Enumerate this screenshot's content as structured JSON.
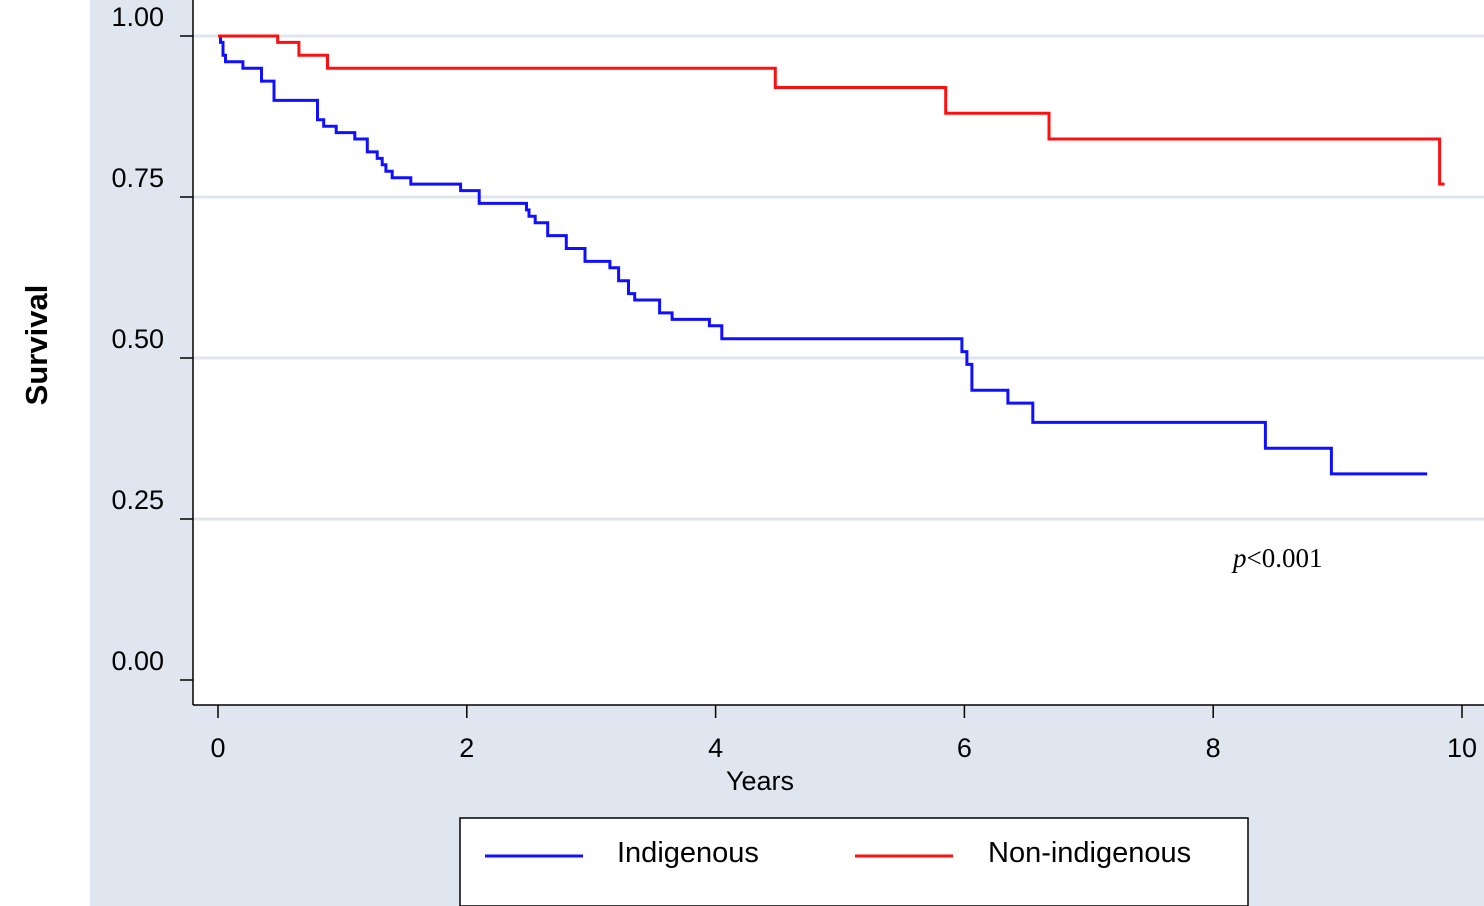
{
  "chart_data": {
    "type": "line",
    "xlabel": "Years",
    "ylabel": "Survival",
    "xlim": [
      0,
      10
    ],
    "ylim": [
      0,
      1
    ],
    "x_ticks": [
      "0",
      "2",
      "4",
      "6",
      "8",
      "10"
    ],
    "y_ticks": [
      "0.00",
      "0.25",
      "0.50",
      "0.75",
      "1.00"
    ],
    "grid": "horizontal",
    "legend_position": "bottom",
    "annotation": {
      "italic": "p",
      "rest": "<0.001"
    },
    "series": [
      {
        "name": "Indigenous",
        "color": "#1010ff",
        "x": [
          0,
          0.02,
          0.04,
          0.06,
          0.2,
          0.35,
          0.45,
          0.8,
          0.85,
          0.95,
          1.1,
          1.2,
          1.28,
          1.32,
          1.35,
          1.4,
          1.55,
          1.95,
          2.1,
          2.48,
          2.5,
          2.55,
          2.65,
          2.8,
          2.95,
          3.15,
          3.22,
          3.3,
          3.35,
          3.55,
          3.65,
          3.95,
          4.05,
          5.98,
          6.02,
          6.06,
          6.35,
          6.55,
          8.42,
          8.95,
          9.72
        ],
        "y": [
          1.0,
          0.99,
          0.97,
          0.96,
          0.95,
          0.93,
          0.9,
          0.87,
          0.86,
          0.85,
          0.84,
          0.82,
          0.81,
          0.8,
          0.79,
          0.78,
          0.77,
          0.76,
          0.74,
          0.73,
          0.72,
          0.71,
          0.69,
          0.67,
          0.65,
          0.64,
          0.62,
          0.6,
          0.59,
          0.57,
          0.56,
          0.55,
          0.53,
          0.51,
          0.49,
          0.45,
          0.43,
          0.4,
          0.36,
          0.32,
          0.32
        ]
      },
      {
        "name": "Non-indigenous",
        "color": "#ff1010",
        "x": [
          0,
          0.48,
          0.65,
          0.88,
          4.48,
          5.85,
          6.68,
          9.82,
          9.86
        ],
        "y": [
          1.0,
          0.99,
          0.97,
          0.95,
          0.92,
          0.88,
          0.84,
          0.77,
          0.77
        ]
      }
    ]
  }
}
